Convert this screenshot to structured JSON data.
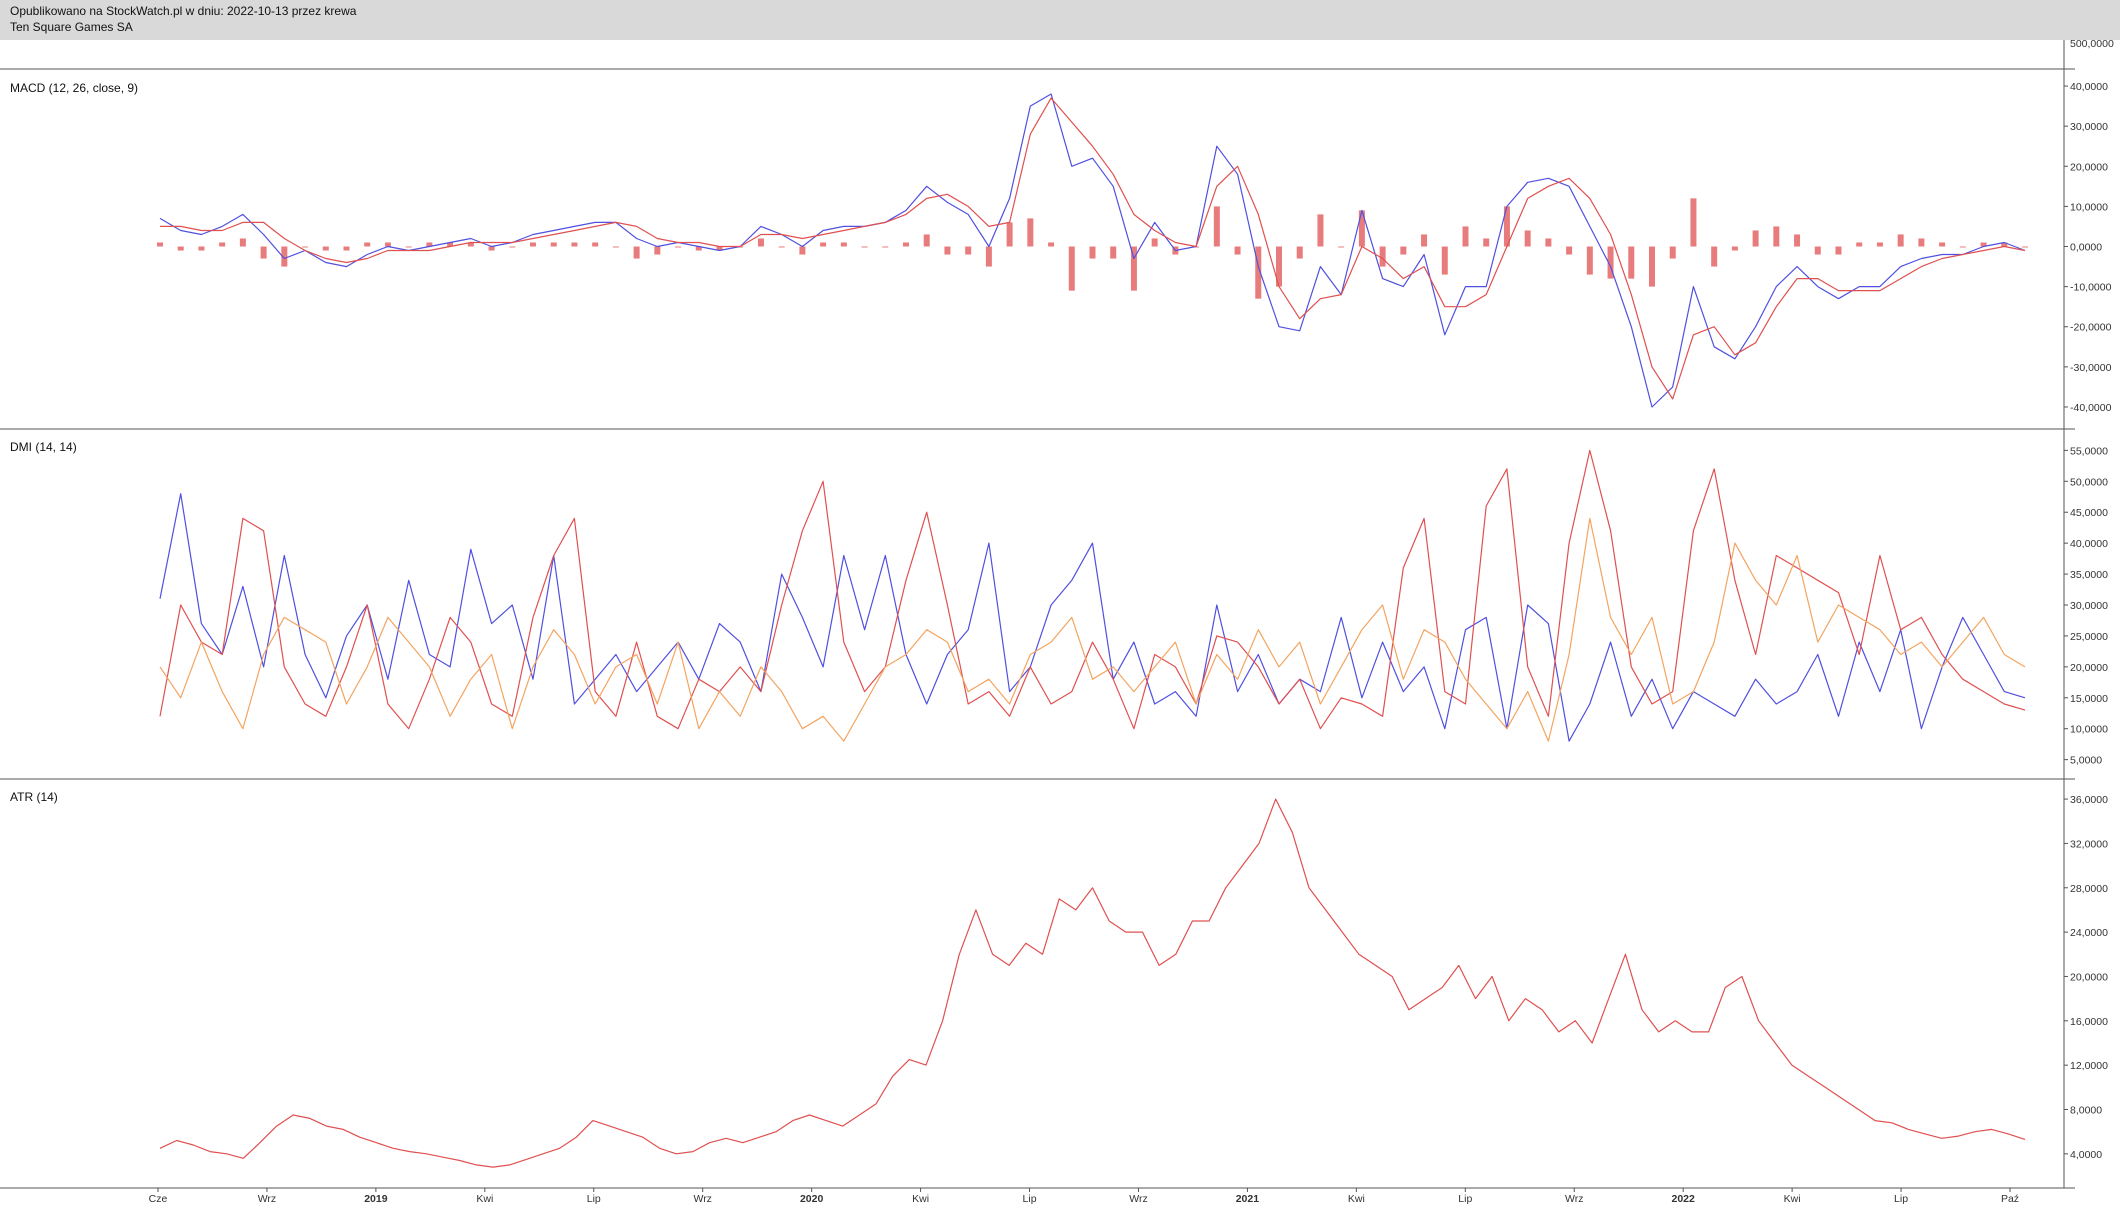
{
  "header": {
    "published_line": "Opublikowano na StockWatch.pl w dniu: 2022-10-13 przez krewa",
    "instrument": "Ten Square Games SA"
  },
  "colors": {
    "header_bg": "#d9d9d9",
    "axis": "#555555",
    "red": "#e05050",
    "blue": "#5050e0",
    "orange": "#f4a460"
  },
  "chart_data": {
    "type": "line",
    "x_ticks": [
      {
        "label": "Cze",
        "bold": false
      },
      {
        "label": "Wrz",
        "bold": false
      },
      {
        "label": "2019",
        "bold": true
      },
      {
        "label": "Kwi",
        "bold": false
      },
      {
        "label": "Lip",
        "bold": false
      },
      {
        "label": "Wrz",
        "bold": false
      },
      {
        "label": "2020",
        "bold": true
      },
      {
        "label": "Kwi",
        "bold": false
      },
      {
        "label": "Lip",
        "bold": false
      },
      {
        "label": "Wrz",
        "bold": false
      },
      {
        "label": "2021",
        "bold": true
      },
      {
        "label": "Kwi",
        "bold": false
      },
      {
        "label": "Lip",
        "bold": false
      },
      {
        "label": "Wrz",
        "bold": false
      },
      {
        "label": "2022",
        "bold": true
      },
      {
        "label": "Kwi",
        "bold": false
      },
      {
        "label": "Lip",
        "bold": false
      },
      {
        "label": "Paź",
        "bold": false
      }
    ],
    "price_axis_visible_tick": "500,0000",
    "panels": [
      {
        "title": "MACD (12, 26, close, 9)",
        "ylim": [
          -42,
          42
        ],
        "y_ticks": [
          "40,0000",
          "30,0000",
          "20,0000",
          "10,0000",
          "0,0000",
          "-10,0000",
          "-20,0000",
          "-30,0000",
          "-40,0000"
        ],
        "y_values": [
          40,
          30,
          20,
          10,
          0,
          -10,
          -20,
          -30,
          -40
        ],
        "series": [
          {
            "role": "macd",
            "color": "#5050e0",
            "values": [
              7,
              4,
              3,
              5,
              8,
              3,
              -3,
              -1,
              -4,
              -5,
              -2,
              0,
              -1,
              0,
              1,
              2,
              0,
              1,
              3,
              4,
              5,
              6,
              6,
              2,
              0,
              1,
              0,
              -1,
              0,
              5,
              3,
              0,
              4,
              5,
              5,
              6,
              9,
              15,
              11,
              8,
              0,
              12,
              35,
              38,
              20,
              22,
              15,
              -3,
              6,
              -1,
              0,
              25,
              18,
              -5,
              -20,
              -21,
              -5,
              -12,
              9,
              -8,
              -10,
              -2,
              -22,
              -10,
              -10,
              10,
              16,
              17,
              15,
              5,
              -5,
              -20,
              -40,
              -35,
              -10,
              -25,
              -28,
              -20,
              -10,
              -5,
              -10,
              -13,
              -10,
              -10,
              -5,
              -3,
              -2,
              -2,
              0,
              1,
              -1
            ]
          },
          {
            "role": "signal",
            "color": "#e05050",
            "values": [
              5,
              5,
              4,
              4,
              6,
              6,
              2,
              -1,
              -3,
              -4,
              -3,
              -1,
              -1,
              -1,
              0,
              1,
              1,
              1,
              2,
              3,
              4,
              5,
              6,
              5,
              2,
              1,
              1,
              0,
              0,
              3,
              3,
              2,
              3,
              4,
              5,
              6,
              8,
              12,
              13,
              10,
              5,
              6,
              28,
              37,
              31,
              25,
              18,
              8,
              4,
              1,
              0,
              15,
              20,
              8,
              -10,
              -18,
              -13,
              -12,
              0,
              -3,
              -8,
              -5,
              -15,
              -15,
              -12,
              0,
              12,
              15,
              17,
              12,
              3,
              -12,
              -30,
              -38,
              -22,
              -20,
              -27,
              -24,
              -15,
              -8,
              -8,
              -11,
              -11,
              -11,
              -8,
              -5,
              -3,
              -2,
              -1,
              0,
              -1
            ]
          }
        ],
        "histogram": [
          1,
          -1,
          -1,
          1,
          2,
          -3,
          -5,
          0,
          -1,
          -1,
          1,
          1,
          0,
          1,
          1,
          1,
          -1,
          0,
          1,
          1,
          1,
          1,
          0,
          -3,
          -2,
          0,
          -1,
          -1,
          0,
          2,
          0,
          -2,
          1,
          1,
          0,
          0,
          1,
          3,
          -2,
          -2,
          -5,
          6,
          7,
          1,
          -11,
          -3,
          -3,
          -11,
          2,
          -2,
          0,
          10,
          -2,
          -13,
          -10,
          -3,
          8,
          0,
          9,
          -5,
          -2,
          3,
          -7,
          5,
          2,
          10,
          4,
          2,
          -2,
          -7,
          -8,
          -8,
          -10,
          -3,
          12,
          -5,
          -1,
          4,
          5,
          3,
          -2,
          -2,
          1,
          1,
          3,
          2,
          1,
          0,
          1,
          1,
          0
        ]
      },
      {
        "title": "DMI (14, 14)",
        "ylim": [
          3,
          57
        ],
        "y_ticks": [
          "55,0000",
          "50,0000",
          "45,0000",
          "40,0000",
          "35,0000",
          "30,0000",
          "25,0000",
          "20,0000",
          "15,0000",
          "10,0000",
          "5,0000"
        ],
        "y_values": [
          55,
          50,
          45,
          40,
          35,
          30,
          25,
          20,
          15,
          10,
          5
        ],
        "series": [
          {
            "role": "plus_di",
            "color": "#5050e0",
            "values": [
              31,
              48,
              27,
              22,
              33,
              20,
              38,
              22,
              15,
              25,
              30,
              18,
              34,
              22,
              20,
              39,
              27,
              30,
              18,
              38,
              14,
              18,
              22,
              16,
              20,
              24,
              18,
              27,
              24,
              16,
              35,
              28,
              20,
              38,
              26,
              38,
              22,
              14,
              22,
              26,
              40,
              16,
              20,
              30,
              34,
              40,
              18,
              24,
              14,
              16,
              12,
              30,
              16,
              22,
              14,
              18,
              16,
              28,
              15,
              24,
              16,
              20,
              10,
              26,
              28,
              10,
              30,
              27,
              8,
              14,
              24,
              12,
              18,
              10,
              16,
              14,
              12,
              18,
              14,
              16,
              22,
              12,
              24,
              16,
              26,
              10,
              20,
              28,
              22,
              16,
              15
            ]
          },
          {
            "role": "minus_di",
            "color": "#e05050",
            "values": [
              12,
              30,
              24,
              22,
              44,
              42,
              20,
              14,
              12,
              20,
              30,
              14,
              10,
              18,
              28,
              24,
              14,
              12,
              28,
              38,
              44,
              16,
              12,
              24,
              12,
              10,
              18,
              16,
              20,
              16,
              30,
              42,
              50,
              24,
              16,
              20,
              34,
              45,
              30,
              14,
              16,
              12,
              20,
              14,
              16,
              24,
              18,
              10,
              22,
              20,
              14,
              25,
              24,
              20,
              14,
              18,
              10,
              15,
              14,
              12,
              36,
              44,
              16,
              14,
              46,
              52,
              20,
              12,
              40,
              55,
              42,
              20,
              14,
              16,
              42,
              52,
              34,
              22,
              38,
              36,
              34,
              32,
              22,
              38,
              26,
              28,
              22,
              18,
              16,
              14,
              13
            ]
          },
          {
            "role": "adx",
            "color": "#f4a460",
            "values": [
              20,
              15,
              24,
              16,
              10,
              22,
              28,
              26,
              24,
              14,
              20,
              28,
              24,
              20,
              12,
              18,
              22,
              10,
              20,
              26,
              22,
              14,
              20,
              22,
              14,
              24,
              10,
              16,
              12,
              20,
              16,
              10,
              12,
              8,
              14,
              20,
              22,
              26,
              24,
              16,
              18,
              14,
              22,
              24,
              28,
              18,
              20,
              16,
              20,
              24,
              14,
              22,
              18,
              26,
              20,
              24,
              14,
              20,
              26,
              30,
              18,
              26,
              24,
              18,
              14,
              10,
              16,
              8,
              22,
              44,
              28,
              22,
              28,
              14,
              16,
              24,
              40,
              34,
              30,
              38,
              24,
              30,
              28,
              26,
              22,
              24,
              20,
              24,
              28,
              22,
              20
            ]
          }
        ]
      },
      {
        "title": "ATR (14)",
        "ylim": [
          2,
          37
        ],
        "y_ticks": [
          "36,0000",
          "32,0000",
          "28,0000",
          "24,0000",
          "20,0000",
          "16,0000",
          "12,0000",
          "8,0000",
          "4,0000"
        ],
        "y_values": [
          36,
          32,
          28,
          24,
          20,
          16,
          12,
          8,
          4
        ],
        "series": [
          {
            "role": "atr",
            "color": "#e05050",
            "values": [
              4.5,
              5.2,
              4.8,
              4.2,
              4,
              3.6,
              5,
              6.5,
              7.5,
              7.2,
              6.5,
              6.2,
              5.5,
              5,
              4.5,
              4.2,
              4,
              3.7,
              3.4,
              3,
              2.8,
              3,
              3.5,
              4,
              4.5,
              5.5,
              7,
              6.5,
              6,
              5.5,
              4.5,
              4,
              4.2,
              5,
              5.4,
              5,
              5.5,
              6,
              7,
              7.5,
              7,
              6.5,
              7.5,
              8.5,
              11,
              12.5,
              12,
              16,
              22,
              26,
              22,
              21,
              23,
              22,
              27,
              26,
              28,
              25,
              24,
              24,
              21,
              22,
              25,
              25,
              28,
              30,
              32,
              36,
              33,
              28,
              26,
              24,
              22,
              21,
              20,
              17,
              18,
              19,
              21,
              18,
              20,
              16,
              18,
              17,
              15,
              16,
              14,
              18,
              22,
              17,
              15,
              16,
              15,
              15,
              19,
              20,
              16,
              14,
              12,
              11,
              10,
              9,
              8,
              7,
              6.8,
              6.2,
              5.8,
              5.4,
              5.6,
              6,
              6.2,
              5.8,
              5.3
            ]
          }
        ]
      }
    ]
  }
}
